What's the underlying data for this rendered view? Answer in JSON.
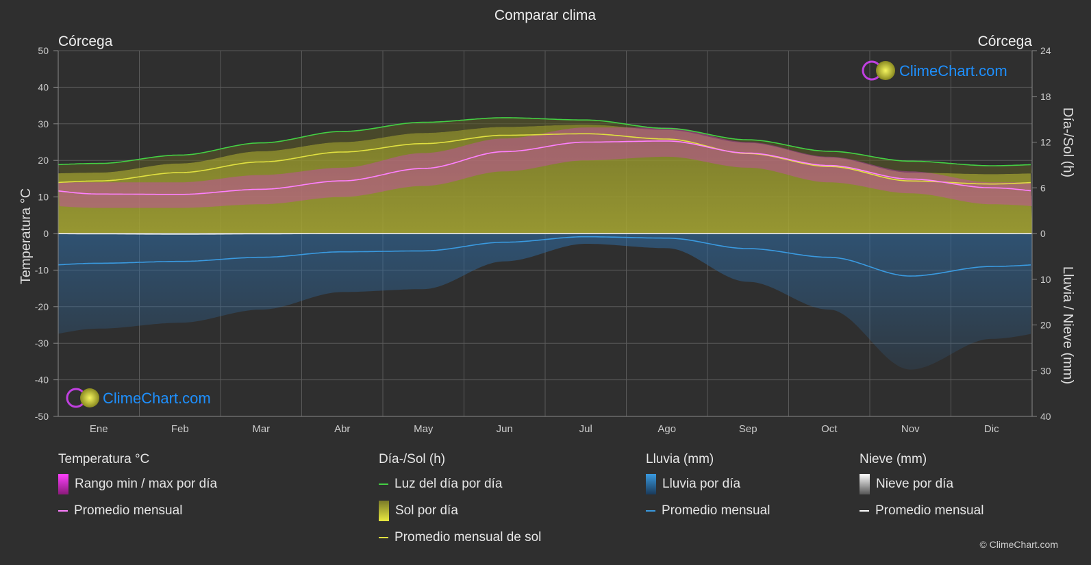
{
  "title": "Comparar clima",
  "location_left": "Córcega",
  "location_right": "Córcega",
  "watermark": "ClimeChart.com",
  "copyright": "© ClimeChart.com",
  "colors": {
    "background": "#2f2f2f",
    "grid": "#5a5a5a",
    "daylight": "#44d044",
    "sunshine_fill": "#9a9a2c",
    "sunshine_avg": "#e0e040",
    "temp_range": "#d040c0",
    "temp_avg": "#ff80ff",
    "rain": "#2a6aa0",
    "rain_avg": "#3a9ae0",
    "snow_avg": "#ffffff",
    "watermark": "#1e90ff"
  },
  "chart_data": {
    "type": "area",
    "title": "Comparar clima",
    "months": [
      "Ene",
      "Feb",
      "Mar",
      "Abr",
      "May",
      "Jun",
      "Jul",
      "Ago",
      "Sep",
      "Oct",
      "Nov",
      "Dic"
    ],
    "axes": {
      "left": {
        "label": "Temperatura °C",
        "min": -50,
        "max": 50,
        "ticks": [
          50,
          40,
          30,
          20,
          10,
          0,
          -10,
          -20,
          -30,
          -40,
          -50
        ]
      },
      "right_top": {
        "label": "Día-/Sol (h)",
        "min": 0,
        "max": 24,
        "ticks": [
          24,
          18,
          12,
          6,
          0
        ]
      },
      "right_bottom": {
        "label": "Lluvia / Nieve (mm)",
        "min": 0,
        "max": 40,
        "ticks": [
          0,
          10,
          20,
          30,
          40
        ]
      }
    },
    "grid": true,
    "series": [
      {
        "name": "Luz del día por día",
        "axis": "hours",
        "values": [
          9.2,
          10.3,
          11.9,
          13.4,
          14.6,
          15.2,
          14.9,
          13.8,
          12.3,
          10.8,
          9.5,
          8.9
        ]
      },
      {
        "name": "Promedio mensual de sol",
        "axis": "hours",
        "values": [
          6.9,
          8.0,
          9.4,
          10.7,
          11.8,
          12.9,
          13.1,
          12.4,
          10.5,
          8.8,
          6.9,
          6.5
        ]
      },
      {
        "name": "Sol por día",
        "axis": "hours",
        "values": [
          8.0,
          9.2,
          10.8,
          12.0,
          13.2,
          14.0,
          14.3,
          13.6,
          11.9,
          10.0,
          8.0,
          7.8
        ]
      },
      {
        "name": "Temp max diaria",
        "axis": "temp",
        "values": [
          14,
          14,
          16,
          18,
          22,
          26,
          29,
          29,
          25,
          21,
          17,
          14
        ]
      },
      {
        "name": "Temp min diaria",
        "axis": "temp",
        "values": [
          7,
          7,
          8,
          10,
          13,
          17,
          20,
          21,
          18,
          14,
          11,
          8
        ]
      },
      {
        "name": "Promedio mensual",
        "axis": "temp",
        "values": [
          10.8,
          10.7,
          12.1,
          14.4,
          17.8,
          22.4,
          25.0,
          25.3,
          22.0,
          18.6,
          14.9,
          12.5
        ]
      },
      {
        "name": "Lluvia promedio mensual",
        "axis": "rain_mm",
        "values": [
          6.5,
          6.1,
          5.2,
          4.0,
          3.8,
          1.9,
          0.7,
          1.0,
          3.3,
          5.2,
          9.3,
          7.2
        ]
      },
      {
        "name": "Nieve promedio mensual",
        "axis": "rain_mm",
        "values": [
          0.1,
          0.2,
          0.1,
          0,
          0,
          0,
          0,
          0,
          0,
          0,
          0,
          0
        ]
      }
    ]
  },
  "legend": {
    "temp": {
      "header": "Temperatura °C",
      "items": [
        "Rango min / max por día",
        "Promedio mensual"
      ]
    },
    "sun": {
      "header": "Día-/Sol (h)",
      "items": [
        "Luz del día por día",
        "Sol por día",
        "Promedio mensual de sol"
      ]
    },
    "rain": {
      "header": "Lluvia (mm)",
      "items": [
        "Lluvia por día",
        "Promedio mensual"
      ]
    },
    "snow": {
      "header": "Nieve (mm)",
      "items": [
        "Nieve por día",
        "Promedio mensual"
      ]
    }
  }
}
